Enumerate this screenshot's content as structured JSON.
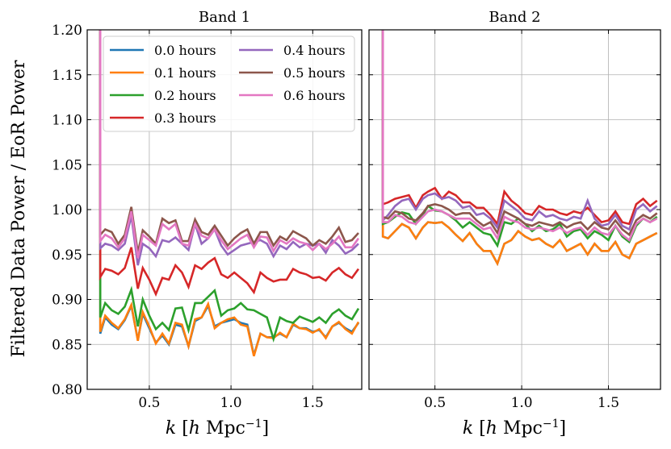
{
  "chart_data": {
    "type": "line",
    "ylabel": "Filtered Data Power / EoR Power",
    "xlabel_parts": [
      "k",
      " [",
      "h",
      " Mpc",
      "−1",
      "]"
    ],
    "ylim": [
      0.8,
      1.2
    ],
    "xlim": [
      0.12,
      1.8
    ],
    "yticks": [
      0.8,
      0.85,
      0.9,
      0.95,
      1.0,
      1.05,
      1.1,
      1.15,
      1.2
    ],
    "ytick_labels": [
      "0.80",
      "0.85",
      "0.90",
      "0.95",
      "1.00",
      "1.05",
      "1.10",
      "1.15",
      "1.20"
    ],
    "xticks": [
      0.5,
      1.0,
      1.5
    ],
    "xtick_labels": [
      "0.5",
      "1.0",
      "1.5"
    ],
    "grid": true,
    "legend": {
      "location": "upper-left of Band 1",
      "columns": 2,
      "entries": [
        "0.0 hours",
        "0.1 hours",
        "0.2 hours",
        "0.3 hours",
        "0.4 hours",
        "0.5 hours",
        "0.6 hours"
      ]
    },
    "series_colors": [
      "#1f77b4",
      "#ff7f0e",
      "#2ca02c",
      "#d62728",
      "#9467bd",
      "#8c564b",
      "#e377c2"
    ],
    "k": [
      0.2,
      0.23,
      0.27,
      0.31,
      0.35,
      0.39,
      0.43,
      0.46,
      0.5,
      0.54,
      0.58,
      0.62,
      0.66,
      0.7,
      0.74,
      0.78,
      0.82,
      0.86,
      0.9,
      0.94,
      0.98,
      1.02,
      1.06,
      1.1,
      1.14,
      1.18,
      1.22,
      1.26,
      1.3,
      1.34,
      1.38,
      1.42,
      1.46,
      1.5,
      1.54,
      1.58,
      1.62,
      1.66,
      1.7,
      1.74,
      1.78
    ],
    "panels": [
      {
        "title": "Band 1",
        "spike_to": 1.22,
        "series": [
          {
            "name": "0.0 hours",
            "values": [
              0.862,
              0.88,
              0.872,
              0.867,
              0.877,
              0.893,
              0.855,
              0.884,
              0.868,
              0.852,
              0.86,
              0.85,
              0.872,
              0.87,
              0.848,
              0.876,
              0.88,
              0.893,
              0.87,
              0.874,
              0.876,
              0.878,
              0.874,
              0.872,
              0.838,
              0.862,
              0.858,
              0.858,
              0.862,
              0.858,
              0.872,
              0.868,
              0.868,
              0.864,
              0.866,
              0.858,
              0.87,
              0.874,
              0.868,
              0.864,
              0.874
            ]
          },
          {
            "name": "0.1 hours",
            "values": [
              0.864,
              0.882,
              0.874,
              0.868,
              0.878,
              0.894,
              0.854,
              0.886,
              0.87,
              0.851,
              0.862,
              0.851,
              0.874,
              0.872,
              0.848,
              0.878,
              0.88,
              0.895,
              0.868,
              0.874,
              0.878,
              0.88,
              0.872,
              0.87,
              0.837,
              0.862,
              0.858,
              0.857,
              0.863,
              0.858,
              0.873,
              0.868,
              0.867,
              0.863,
              0.867,
              0.857,
              0.87,
              0.875,
              0.867,
              0.862,
              0.875
            ]
          },
          {
            "name": "0.2 hours",
            "values": [
              0.88,
              0.896,
              0.888,
              0.884,
              0.892,
              0.911,
              0.87,
              0.9,
              0.882,
              0.867,
              0.874,
              0.866,
              0.89,
              0.891,
              0.866,
              0.896,
              0.896,
              0.903,
              0.91,
              0.882,
              0.888,
              0.89,
              0.896,
              0.889,
              0.888,
              0.884,
              0.88,
              0.856,
              0.88,
              0.876,
              0.874,
              0.881,
              0.878,
              0.875,
              0.88,
              0.874,
              0.884,
              0.889,
              0.882,
              0.878,
              0.89
            ]
          },
          {
            "name": "0.3 hours",
            "values": [
              0.925,
              0.934,
              0.932,
              0.928,
              0.935,
              0.958,
              0.912,
              0.935,
              0.922,
              0.906,
              0.924,
              0.922,
              0.938,
              0.93,
              0.914,
              0.938,
              0.934,
              0.941,
              0.946,
              0.928,
              0.924,
              0.93,
              0.924,
              0.918,
              0.908,
              0.93,
              0.924,
              0.92,
              0.922,
              0.922,
              0.934,
              0.93,
              0.928,
              0.924,
              0.925,
              0.921,
              0.93,
              0.935,
              0.928,
              0.924,
              0.934
            ]
          },
          {
            "name": "0.4 hours",
            "values": [
              0.957,
              0.962,
              0.96,
              0.955,
              0.962,
              0.993,
              0.938,
              0.962,
              0.957,
              0.948,
              0.966,
              0.964,
              0.969,
              0.962,
              0.955,
              0.984,
              0.962,
              0.968,
              0.978,
              0.96,
              0.95,
              0.955,
              0.96,
              0.962,
              0.964,
              0.966,
              0.962,
              0.948,
              0.96,
              0.956,
              0.964,
              0.958,
              0.962,
              0.96,
              0.962,
              0.952,
              0.966,
              0.96,
              0.951,
              0.955,
              0.962
            ]
          },
          {
            "name": "0.5 hours",
            "values": [
              0.972,
              0.978,
              0.975,
              0.962,
              0.972,
              1.003,
              0.952,
              0.977,
              0.97,
              0.962,
              0.99,
              0.985,
              0.988,
              0.965,
              0.965,
              0.989,
              0.975,
              0.972,
              0.982,
              0.971,
              0.96,
              0.968,
              0.974,
              0.978,
              0.962,
              0.975,
              0.975,
              0.96,
              0.97,
              0.966,
              0.976,
              0.972,
              0.968,
              0.96,
              0.966,
              0.962,
              0.97,
              0.98,
              0.964,
              0.966,
              0.974
            ]
          },
          {
            "name": "0.6 hours",
            "values": [
              0.965,
              0.972,
              0.968,
              0.958,
              0.968,
              0.998,
              0.946,
              0.972,
              0.966,
              0.96,
              0.984,
              0.978,
              0.984,
              0.962,
              0.96,
              0.984,
              0.971,
              0.968,
              0.978,
              0.966,
              0.956,
              0.962,
              0.968,
              0.972,
              0.958,
              0.97,
              0.969,
              0.954,
              0.966,
              0.962,
              0.968,
              0.964,
              0.962,
              0.955,
              0.962,
              0.956,
              0.962,
              0.97,
              0.958,
              0.958,
              0.968
            ]
          }
        ]
      },
      {
        "title": "Band 2",
        "spike_to": 1.22,
        "series": [
          {
            "name": "0.0 hours",
            "values": [
              0.97,
              0.968,
              0.976,
              0.984,
              0.98,
              0.968,
              0.98,
              0.986,
              0.985,
              0.986,
              0.98,
              0.972,
              0.965,
              0.974,
              0.962,
              0.954,
              0.954,
              0.94,
              0.962,
              0.966,
              0.976,
              0.97,
              0.966,
              0.968,
              0.962,
              0.958,
              0.966,
              0.954,
              0.958,
              0.962,
              0.95,
              0.962,
              0.954,
              0.954,
              0.964,
              0.95,
              0.946,
              0.962,
              0.966,
              0.97,
              0.974
            ]
          },
          {
            "name": "0.1 hours",
            "values": [
              0.97,
              0.968,
              0.976,
              0.984,
              0.98,
              0.968,
              0.98,
              0.986,
              0.985,
              0.986,
              0.98,
              0.972,
              0.965,
              0.974,
              0.962,
              0.954,
              0.954,
              0.94,
              0.962,
              0.966,
              0.976,
              0.97,
              0.966,
              0.968,
              0.962,
              0.958,
              0.966,
              0.954,
              0.958,
              0.962,
              0.95,
              0.962,
              0.954,
              0.954,
              0.964,
              0.95,
              0.946,
              0.962,
              0.966,
              0.97,
              0.974
            ]
          },
          {
            "name": "0.2 hours",
            "values": [
              0.984,
              0.986,
              0.992,
              0.997,
              0.995,
              0.984,
              0.994,
              1.004,
              0.999,
              0.998,
              0.994,
              0.988,
              0.98,
              0.986,
              0.98,
              0.974,
              0.972,
              0.96,
              0.986,
              0.984,
              0.99,
              0.984,
              0.976,
              0.982,
              0.976,
              0.978,
              0.984,
              0.97,
              0.976,
              0.978,
              0.968,
              0.976,
              0.972,
              0.966,
              0.982,
              0.97,
              0.964,
              0.982,
              0.99,
              0.986,
              0.992
            ]
          },
          {
            "name": "0.3 hours",
            "values": [
              1.006,
              1.008,
              1.012,
              1.014,
              1.016,
              1.002,
              1.016,
              1.02,
              1.024,
              1.012,
              1.02,
              1.016,
              1.008,
              1.008,
              1.002,
              1.002,
              0.994,
              0.984,
              1.02,
              1.01,
              1.004,
              0.996,
              0.994,
              1.004,
              1.0,
              1.0,
              0.996,
              0.994,
              0.998,
              0.996,
              1.002,
              0.994,
              0.986,
              0.988,
              0.998,
              0.986,
              0.984,
              1.006,
              1.012,
              1.004,
              1.01
            ]
          },
          {
            "name": "0.4 hours",
            "values": [
              0.988,
              0.994,
              1.004,
              1.01,
              1.012,
              1.0,
              1.012,
              1.016,
              1.018,
              1.012,
              1.014,
              1.01,
              1.002,
              1.004,
              0.994,
              0.996,
              0.99,
              0.98,
              1.01,
              1.004,
              0.998,
              0.99,
              0.988,
              0.998,
              0.992,
              0.994,
              0.99,
              0.988,
              0.992,
              0.99,
              1.01,
              0.99,
              0.982,
              0.984,
              0.994,
              0.982,
              0.978,
              1.0,
              1.006,
              0.998,
              1.004
            ]
          },
          {
            "name": "0.5 hours",
            "values": [
              0.992,
              0.99,
              0.998,
              0.996,
              0.99,
              0.988,
              0.996,
              1.004,
              1.006,
              1.004,
              1.0,
              0.994,
              0.996,
              0.996,
              0.988,
              0.982,
              0.986,
              0.974,
              0.998,
              0.994,
              0.99,
              0.984,
              0.982,
              0.986,
              0.984,
              0.982,
              0.986,
              0.98,
              0.984,
              0.986,
              0.978,
              0.986,
              0.98,
              0.978,
              0.988,
              0.978,
              0.972,
              0.988,
              0.994,
              0.99,
              0.996
            ]
          },
          {
            "name": "0.6 hours",
            "values": [
              0.986,
              0.986,
              0.994,
              0.992,
              0.986,
              0.984,
              0.992,
              0.998,
              1.0,
              0.998,
              0.994,
              0.99,
              0.99,
              0.99,
              0.984,
              0.978,
              0.98,
              0.968,
              0.992,
              0.988,
              0.986,
              0.98,
              0.978,
              0.98,
              0.978,
              0.976,
              0.98,
              0.974,
              0.978,
              0.98,
              0.972,
              0.98,
              0.974,
              0.972,
              0.982,
              0.972,
              0.966,
              0.984,
              0.99,
              0.986,
              0.99
            ]
          }
        ]
      }
    ]
  }
}
